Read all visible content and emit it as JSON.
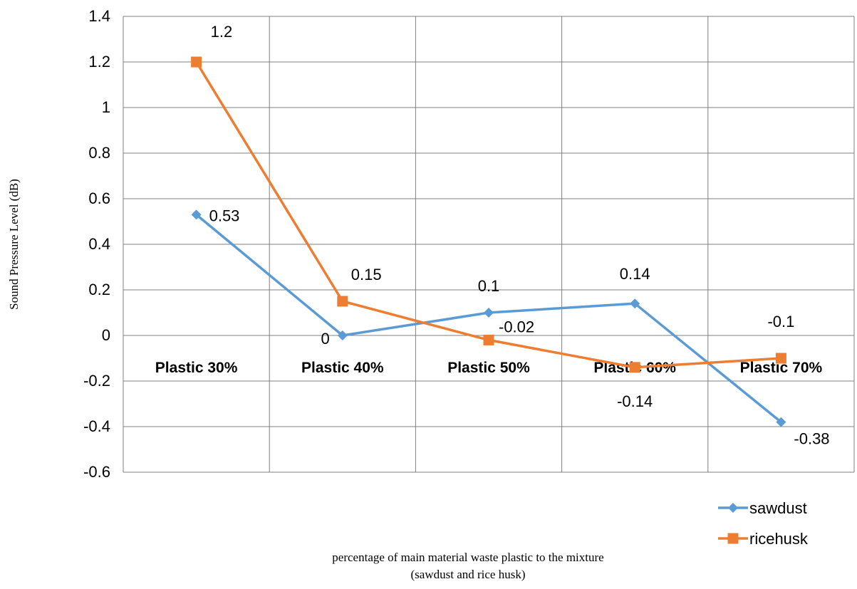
{
  "chart_data": {
    "type": "line",
    "title": "",
    "xlabel_line1": "percentage of main material waste plastic to the mixture",
    "xlabel_line2": "(sawdust and rice husk)",
    "ylabel": "Sound Pressure Level (dB)",
    "categories": [
      "Plastic  30%",
      "Plastic  40%",
      "Plastic  50%",
      "Plastic  60%",
      "Plastic  70%"
    ],
    "ylim": [
      -0.6,
      1.4
    ],
    "yticks": [
      -0.6,
      -0.4,
      -0.2,
      0,
      0.2,
      0.4,
      0.6,
      0.8,
      1,
      1.2,
      1.4
    ],
    "ytick_labels": [
      "-0.6",
      "-0.4",
      "-0.2",
      "0",
      "0.2",
      "0.4",
      "0.6",
      "0.8",
      "1",
      "1.2",
      "1.4"
    ],
    "grid": true,
    "legend_position": "bottom-right",
    "series": [
      {
        "name": "sawdust",
        "color": "#5B9BD5",
        "marker": "diamond",
        "values": [
          0.53,
          0,
          0.1,
          0.14,
          -0.38
        ],
        "labels": [
          "0.53",
          "0",
          "0.1",
          "0.14",
          "-0.38"
        ]
      },
      {
        "name": "ricehusk",
        "color": "#ED7D31",
        "marker": "square",
        "values": [
          1.2,
          0.15,
          -0.02,
          -0.14,
          -0.1
        ],
        "labels": [
          "1.2",
          "0.15",
          "-0.02",
          "-0.14",
          "-0.1"
        ]
      }
    ]
  }
}
